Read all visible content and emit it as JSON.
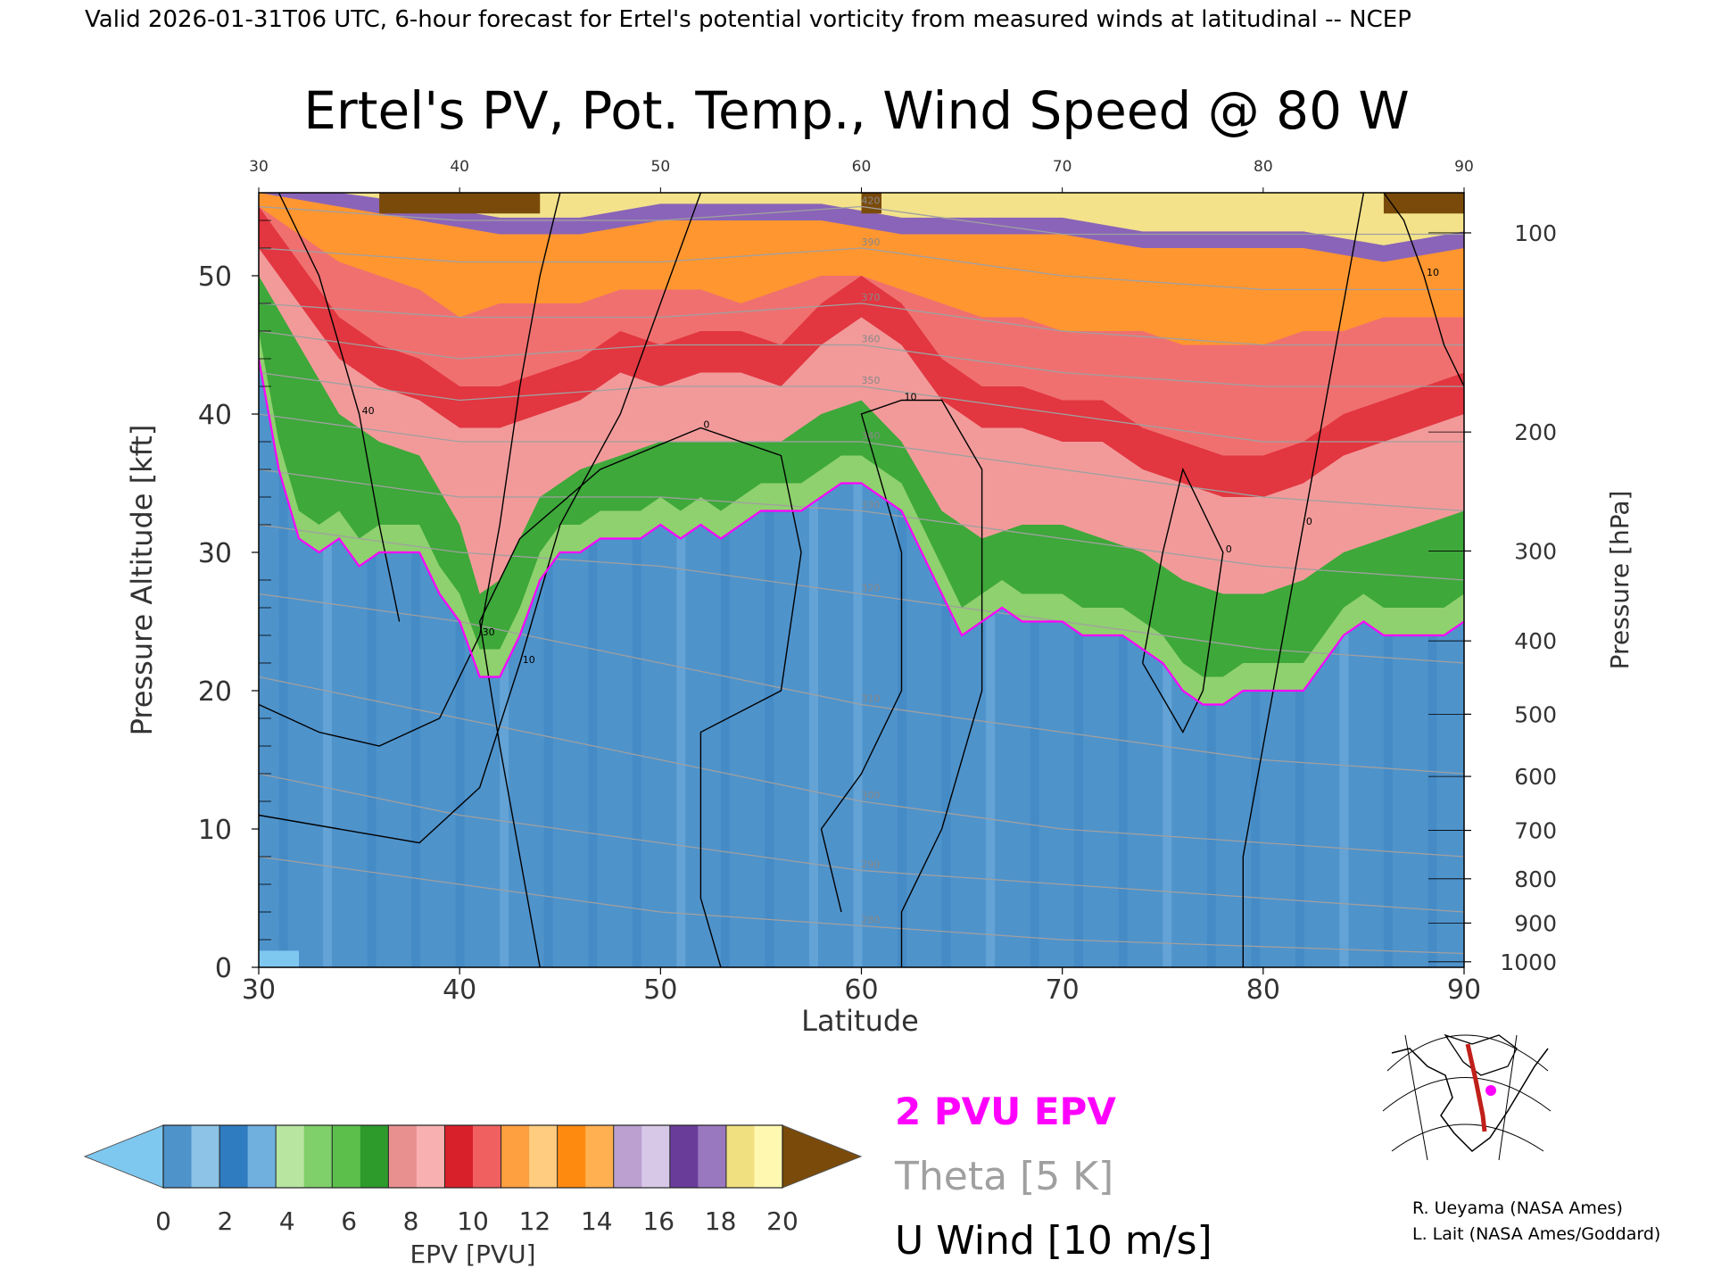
{
  "header": {
    "top_caption": "Valid 2026-01-31T06 UTC, 6-hour forecast for Ertel's potential vorticity from measured winds at latitudinal -- NCEP",
    "credit_1": "R. Ueyama (NASA Ames)",
    "credit_2": "L. Lait (NASA Ames/Goddard)"
  },
  "colors": {
    "pv2_line": "#ff00ff",
    "theta_line": "#a0a0a0",
    "wind_line": "#000000",
    "below_min": "#7ec8f0",
    "above_max": "#7a4a0a"
  },
  "legend": {
    "pv2": "2 PVU EPV",
    "theta": "Theta [5 K]",
    "wind": "U Wind [10 m/s]"
  },
  "colorbar": {
    "label": "EPV [PVU]",
    "ticks": [
      "0",
      "2",
      "4",
      "6",
      "8",
      "10",
      "12",
      "14",
      "16",
      "18",
      "20"
    ],
    "bins": [
      [
        "#4f93cb",
        "#8cc3e6"
      ],
      [
        "#2f7cc0",
        "#6fb0df"
      ],
      [
        "#b8e5a0",
        "#7fcf6a"
      ],
      [
        "#5cbf4c",
        "#2d9a2c"
      ],
      [
        "#e89090",
        "#f8b0b0"
      ],
      [
        "#d8202a",
        "#f06060"
      ],
      [
        "#ffa040",
        "#ffcc80"
      ],
      [
        "#ff8a10",
        "#ffb050"
      ],
      [
        "#bba0d0",
        "#d8c8e8"
      ],
      [
        "#6a3c9a",
        "#9a78c0"
      ]
    ],
    "last_bin": [
      "#f0e080",
      "#fff8b0"
    ]
  },
  "chart_data": {
    "type": "heatmap",
    "title": "Ertel's PV, Pot. Temp., Wind Speed @ 80 W",
    "xlabel": "Latitude",
    "ylabel": "Pressure Altitude [kft]",
    "y2label": "Pressure [hPa]",
    "xlim": [
      30,
      90
    ],
    "ylim": [
      0,
      56
    ],
    "x_ticks": [
      "30",
      "40",
      "50",
      "60",
      "70",
      "80",
      "90"
    ],
    "top_x_ticks": [
      "30",
      "40",
      "50",
      "60",
      "70",
      "80",
      "90"
    ],
    "y_ticks": [
      "0",
      "10",
      "20",
      "30",
      "40",
      "50"
    ],
    "pressure_ticks": [
      {
        "label": "100",
        "alt_kft": 53.1
      },
      {
        "label": "200",
        "alt_kft": 38.7
      },
      {
        "label": "300",
        "alt_kft": 30.1
      },
      {
        "label": "400",
        "alt_kft": 23.6
      },
      {
        "label": "500",
        "alt_kft": 18.3
      },
      {
        "label": "600",
        "alt_kft": 13.8
      },
      {
        "label": "700",
        "alt_kft": 9.9
      },
      {
        "label": "800",
        "alt_kft": 6.4
      },
      {
        "label": "900",
        "alt_kft": 3.2
      },
      {
        "label": "1000",
        "alt_kft": 0.4
      }
    ],
    "pv2_tropopause_kft": [
      [
        30,
        44
      ],
      [
        31,
        36
      ],
      [
        32,
        31
      ],
      [
        33,
        30
      ],
      [
        34,
        31
      ],
      [
        35,
        29
      ],
      [
        36,
        30
      ],
      [
        37,
        30
      ],
      [
        38,
        30
      ],
      [
        39,
        27
      ],
      [
        40,
        25
      ],
      [
        41,
        21
      ],
      [
        42,
        21
      ],
      [
        43,
        24
      ],
      [
        44,
        28
      ],
      [
        45,
        30
      ],
      [
        46,
        30
      ],
      [
        47,
        31
      ],
      [
        48,
        31
      ],
      [
        49,
        31
      ],
      [
        50,
        32
      ],
      [
        51,
        31
      ],
      [
        52,
        32
      ],
      [
        53,
        31
      ],
      [
        54,
        32
      ],
      [
        55,
        33
      ],
      [
        56,
        33
      ],
      [
        57,
        33
      ],
      [
        58,
        34
      ],
      [
        59,
        35
      ],
      [
        60,
        35
      ],
      [
        61,
        34
      ],
      [
        62,
        33
      ],
      [
        63,
        30
      ],
      [
        64,
        27
      ],
      [
        65,
        24
      ],
      [
        66,
        25
      ],
      [
        67,
        26
      ],
      [
        68,
        25
      ],
      [
        69,
        25
      ],
      [
        70,
        25
      ],
      [
        71,
        24
      ],
      [
        72,
        24
      ],
      [
        73,
        24
      ],
      [
        74,
        23
      ],
      [
        75,
        22
      ],
      [
        76,
        20
      ],
      [
        77,
        19
      ],
      [
        78,
        19
      ],
      [
        79,
        20
      ],
      [
        80,
        20
      ],
      [
        81,
        20
      ],
      [
        82,
        20
      ],
      [
        83,
        22
      ],
      [
        84,
        24
      ],
      [
        85,
        25
      ],
      [
        86,
        24
      ],
      [
        87,
        24
      ],
      [
        88,
        24
      ],
      [
        89,
        24
      ],
      [
        90,
        25
      ]
    ],
    "pv6_kft": [
      [
        30,
        50
      ],
      [
        32,
        45
      ],
      [
        34,
        40
      ],
      [
        36,
        38
      ],
      [
        38,
        37
      ],
      [
        40,
        32
      ],
      [
        41,
        27
      ],
      [
        42,
        28
      ],
      [
        44,
        34
      ],
      [
        46,
        36
      ],
      [
        48,
        37
      ],
      [
        50,
        38
      ],
      [
        52,
        38
      ],
      [
        54,
        38
      ],
      [
        56,
        38
      ],
      [
        58,
        40
      ],
      [
        60,
        41
      ],
      [
        62,
        38
      ],
      [
        64,
        33
      ],
      [
        66,
        31
      ],
      [
        68,
        32
      ],
      [
        70,
        32
      ],
      [
        72,
        31
      ],
      [
        74,
        30
      ],
      [
        76,
        28
      ],
      [
        78,
        27
      ],
      [
        80,
        27
      ],
      [
        82,
        28
      ],
      [
        84,
        30
      ],
      [
        86,
        31
      ],
      [
        88,
        32
      ],
      [
        90,
        33
      ]
    ],
    "pv8_kft": [
      [
        30,
        52
      ],
      [
        32,
        48
      ],
      [
        34,
        44
      ],
      [
        36,
        42
      ],
      [
        38,
        41
      ],
      [
        40,
        39
      ],
      [
        42,
        39
      ],
      [
        44,
        40
      ],
      [
        46,
        41
      ],
      [
        48,
        43
      ],
      [
        50,
        42
      ],
      [
        52,
        43
      ],
      [
        54,
        43
      ],
      [
        56,
        42
      ],
      [
        58,
        45
      ],
      [
        60,
        47
      ],
      [
        62,
        45
      ],
      [
        64,
        41
      ],
      [
        66,
        39
      ],
      [
        68,
        39
      ],
      [
        70,
        38
      ],
      [
        72,
        38
      ],
      [
        74,
        36
      ],
      [
        76,
        35
      ],
      [
        78,
        34
      ],
      [
        80,
        34
      ],
      [
        82,
        35
      ],
      [
        84,
        37
      ],
      [
        86,
        38
      ],
      [
        88,
        39
      ],
      [
        90,
        40
      ]
    ],
    "pv12_kft": [
      [
        30,
        55
      ],
      [
        32,
        53
      ],
      [
        34,
        51
      ],
      [
        36,
        50
      ],
      [
        38,
        49
      ],
      [
        40,
        47
      ],
      [
        42,
        48
      ],
      [
        44,
        48
      ],
      [
        46,
        48
      ],
      [
        48,
        49
      ],
      [
        50,
        49
      ],
      [
        52,
        49
      ],
      [
        54,
        48
      ],
      [
        56,
        49
      ],
      [
        58,
        50
      ],
      [
        60,
        50
      ],
      [
        62,
        49
      ],
      [
        64,
        48
      ],
      [
        66,
        47
      ],
      [
        68,
        47
      ],
      [
        70,
        46
      ],
      [
        72,
        46
      ],
      [
        74,
        46
      ],
      [
        76,
        45
      ],
      [
        78,
        45
      ],
      [
        80,
        45
      ],
      [
        82,
        46
      ],
      [
        84,
        46
      ],
      [
        86,
        47
      ],
      [
        88,
        47
      ],
      [
        90,
        47
      ]
    ],
    "pv16_kft": [
      [
        30,
        56
      ],
      [
        34,
        55
      ],
      [
        38,
        54
      ],
      [
        42,
        53
      ],
      [
        46,
        53
      ],
      [
        50,
        54
      ],
      [
        54,
        54
      ],
      [
        58,
        54
      ],
      [
        62,
        53
      ],
      [
        66,
        53
      ],
      [
        70,
        53
      ],
      [
        74,
        52
      ],
      [
        78,
        52
      ],
      [
        82,
        52
      ],
      [
        86,
        51
      ],
      [
        90,
        52
      ]
    ],
    "theta_contours": [
      {
        "label": "280",
        "points": [
          [
            30,
            8
          ],
          [
            40,
            6
          ],
          [
            50,
            4
          ],
          [
            60,
            3
          ],
          [
            70,
            2
          ],
          [
            80,
            1.5
          ],
          [
            90,
            1
          ]
        ]
      },
      {
        "label": "290",
        "points": [
          [
            30,
            14
          ],
          [
            40,
            11
          ],
          [
            50,
            9
          ],
          [
            60,
            7
          ],
          [
            70,
            6
          ],
          [
            80,
            5
          ],
          [
            90,
            4
          ]
        ]
      },
      {
        "label": "300",
        "points": [
          [
            30,
            21
          ],
          [
            40,
            18
          ],
          [
            50,
            15
          ],
          [
            60,
            12
          ],
          [
            70,
            10
          ],
          [
            80,
            9
          ],
          [
            90,
            8
          ]
        ]
      },
      {
        "label": "310",
        "points": [
          [
            30,
            27
          ],
          [
            40,
            25
          ],
          [
            50,
            22
          ],
          [
            60,
            19
          ],
          [
            70,
            17
          ],
          [
            80,
            15
          ],
          [
            90,
            14
          ]
        ]
      },
      {
        "label": "320",
        "points": [
          [
            30,
            32
          ],
          [
            40,
            30
          ],
          [
            50,
            29
          ],
          [
            60,
            27
          ],
          [
            70,
            25
          ],
          [
            80,
            23
          ],
          [
            90,
            22
          ]
        ]
      },
      {
        "label": "330",
        "points": [
          [
            30,
            36
          ],
          [
            40,
            34
          ],
          [
            50,
            34
          ],
          [
            60,
            33
          ],
          [
            70,
            31
          ],
          [
            80,
            29
          ],
          [
            90,
            28
          ]
        ]
      },
      {
        "label": "340",
        "points": [
          [
            30,
            40
          ],
          [
            40,
            38
          ],
          [
            50,
            38
          ],
          [
            60,
            38
          ],
          [
            70,
            36
          ],
          [
            80,
            34
          ],
          [
            90,
            33
          ]
        ]
      },
      {
        "label": "350",
        "points": [
          [
            30,
            43
          ],
          [
            40,
            41
          ],
          [
            50,
            42
          ],
          [
            60,
            42
          ],
          [
            70,
            40
          ],
          [
            80,
            38
          ],
          [
            90,
            38
          ]
        ]
      },
      {
        "label": "360",
        "points": [
          [
            30,
            46
          ],
          [
            40,
            44
          ],
          [
            50,
            45
          ],
          [
            60,
            45
          ],
          [
            70,
            43
          ],
          [
            80,
            42
          ],
          [
            90,
            42
          ]
        ]
      },
      {
        "label": "370",
        "points": [
          [
            30,
            48
          ],
          [
            40,
            47
          ],
          [
            50,
            47
          ],
          [
            60,
            48
          ],
          [
            70,
            46
          ],
          [
            80,
            45
          ],
          [
            90,
            45
          ]
        ]
      },
      {
        "label": "390",
        "points": [
          [
            30,
            52
          ],
          [
            40,
            51
          ],
          [
            50,
            51
          ],
          [
            60,
            52
          ],
          [
            70,
            50
          ],
          [
            80,
            49
          ],
          [
            90,
            49
          ]
        ]
      },
      {
        "label": "420",
        "points": [
          [
            30,
            55
          ],
          [
            40,
            54
          ],
          [
            50,
            54
          ],
          [
            60,
            55
          ],
          [
            70,
            53
          ],
          [
            80,
            53
          ],
          [
            90,
            53
          ]
        ]
      }
    ],
    "wind_contours": [
      {
        "label": "30",
        "points": [
          [
            30,
            19
          ],
          [
            33,
            17
          ],
          [
            36,
            16
          ],
          [
            39,
            18
          ],
          [
            41,
            24
          ],
          [
            42,
            32
          ],
          [
            43,
            42
          ],
          [
            44,
            50
          ],
          [
            45,
            56
          ]
        ]
      },
      {
        "label": "10",
        "points": [
          [
            30,
            11
          ],
          [
            34,
            10
          ],
          [
            38,
            9
          ],
          [
            41,
            13
          ],
          [
            43,
            22
          ],
          [
            45,
            32
          ],
          [
            48,
            40
          ],
          [
            50,
            48
          ],
          [
            52,
            56
          ]
        ]
      },
      {
        "label": "0",
        "points": [
          [
            44,
            0
          ],
          [
            43,
            8
          ],
          [
            42,
            16
          ],
          [
            41,
            25
          ],
          [
            43,
            31
          ],
          [
            47,
            36
          ],
          [
            52,
            39
          ],
          [
            56,
            37
          ],
          [
            57,
            30
          ],
          [
            56,
            20
          ],
          [
            52,
            17
          ],
          [
            52,
            5
          ],
          [
            53,
            0
          ]
        ]
      },
      {
        "label": "10",
        "points": [
          [
            59,
            4
          ],
          [
            58,
            10
          ],
          [
            60,
            14
          ],
          [
            62,
            20
          ],
          [
            62,
            30
          ],
          [
            60,
            40
          ],
          [
            62,
            41
          ],
          [
            64,
            41
          ],
          [
            66,
            36
          ],
          [
            66,
            20
          ],
          [
            64,
            10
          ],
          [
            62,
            4
          ],
          [
            62,
            0
          ]
        ]
      },
      {
        "label": "0",
        "points": [
          [
            79,
            0
          ],
          [
            79,
            8
          ],
          [
            80,
            16
          ],
          [
            81,
            24
          ],
          [
            82,
            32
          ],
          [
            83,
            40
          ],
          [
            84,
            48
          ],
          [
            85,
            56
          ]
        ]
      },
      {
        "label": "0",
        "points": [
          [
            74,
            22
          ],
          [
            75,
            30
          ],
          [
            76,
            36
          ],
          [
            78,
            30
          ],
          [
            77,
            20
          ],
          [
            76,
            17
          ],
          [
            74,
            22
          ]
        ]
      },
      {
        "label": "40",
        "points": [
          [
            31,
            56
          ],
          [
            33,
            50
          ],
          [
            34,
            45
          ],
          [
            35,
            40
          ],
          [
            36,
            32
          ],
          [
            37,
            25
          ]
        ]
      },
      {
        "label": "10",
        "points": [
          [
            86,
            56
          ],
          [
            87,
            54
          ],
          [
            88,
            50
          ],
          [
            89,
            45
          ],
          [
            90,
            42
          ]
        ]
      }
    ],
    "map_inset": {
      "section_longitude": "80 W",
      "lat_range": [
        30,
        90
      ]
    }
  }
}
